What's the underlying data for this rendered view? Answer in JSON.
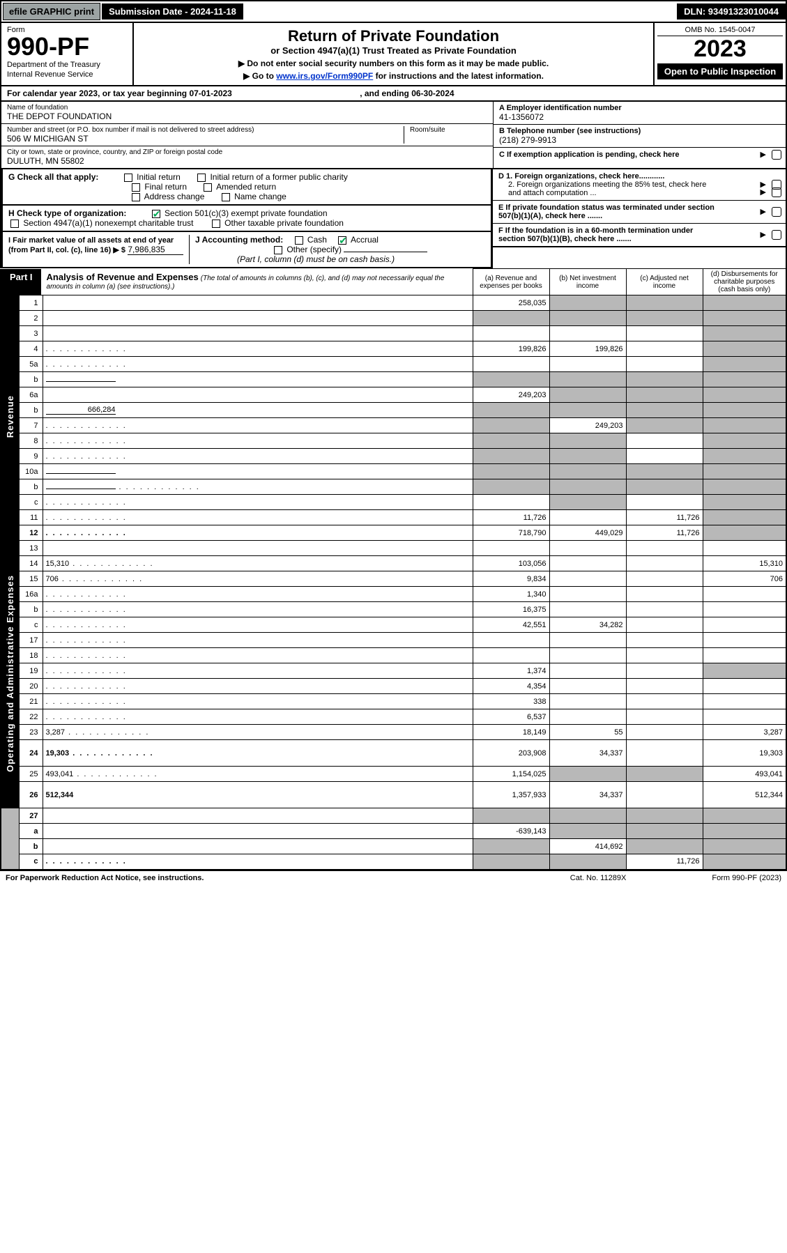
{
  "topbar": {
    "efile": "efile GRAPHIC print",
    "subdate_label": "Submission Date - 2024-11-18",
    "dln": "DLN: 93491323010044"
  },
  "header": {
    "form_word": "Form",
    "form_num": "990-PF",
    "dept": "Department of the Treasury",
    "irs": "Internal Revenue Service",
    "title": "Return of Private Foundation",
    "subtitle": "or Section 4947(a)(1) Trust Treated as Private Foundation",
    "note1": "▶ Do not enter social security numbers on this form as it may be made public.",
    "note2_pre": "▶ Go to ",
    "note2_link": "www.irs.gov/Form990PF",
    "note2_post": " for instructions and the latest information.",
    "omb": "OMB No. 1545-0047",
    "year": "2023",
    "open": "Open to Public Inspection"
  },
  "cal": {
    "text_pre": "For calendar year 2023, or tax year beginning ",
    "begin": "07-01-2023",
    "text_mid": " , and ending ",
    "end": "06-30-2024"
  },
  "info": {
    "name_lbl": "Name of foundation",
    "name": "THE DEPOT FOUNDATION",
    "addr_lbl": "Number and street (or P.O. box number if mail is not delivered to street address)",
    "addr": "506 W MICHIGAN ST",
    "room_lbl": "Room/suite",
    "city_lbl": "City or town, state or province, country, and ZIP or foreign postal code",
    "city": "DULUTH, MN  55802",
    "A_lbl": "A Employer identification number",
    "A_val": "41-1356072",
    "B_lbl": "B Telephone number (see instructions)",
    "B_val": "(218) 279-9913",
    "C_lbl": "C If exemption application is pending, check here",
    "D1": "D 1. Foreign organizations, check here............",
    "D2": "2. Foreign organizations meeting the 85% test, check here and attach computation ...",
    "E": "E  If private foundation status was terminated under section 507(b)(1)(A), check here .......",
    "F": "F  If the foundation is in a 60-month termination under section 507(b)(1)(B), check here .......",
    "G_lbl": "G Check all that apply:",
    "G_opts": [
      "Initial return",
      "Initial return of a former public charity",
      "Final return",
      "Amended return",
      "Address change",
      "Name change"
    ],
    "H_lbl": "H Check type of organization:",
    "H_opts": [
      "Section 501(c)(3) exempt private foundation",
      "Section 4947(a)(1) nonexempt charitable trust",
      "Other taxable private foundation"
    ],
    "I_lbl": "I Fair market value of all assets at end of year (from Part II, col. (c), line 16) ▶ $",
    "I_val": "7,986,835",
    "J_lbl": "J Accounting method:",
    "J_opts": [
      "Cash",
      "Accrual"
    ],
    "J_other": "Other (specify)",
    "J_note": "(Part I, column (d) must be on cash basis.)"
  },
  "part1": {
    "tab": "Part I",
    "title": "Analysis of Revenue and Expenses",
    "sub": "(The total of amounts in columns (b), (c), and (d) may not necessarily equal the amounts in column (a) (see instructions).)",
    "cols": {
      "a": "(a)  Revenue and expenses per books",
      "b": "(b)  Net investment income",
      "c": "(c)  Adjusted net income",
      "d": "(d)  Disbursements for charitable purposes (cash basis only)"
    }
  },
  "rows": [
    {
      "sec": "rev",
      "n": "1",
      "d": "",
      "a": "258,035",
      "b": "",
      "c": "",
      "gb": true,
      "gc": true,
      "gd": true
    },
    {
      "sec": "rev",
      "n": "2",
      "d": "",
      "a": "",
      "b": "",
      "c": "",
      "ga": true,
      "gb": true,
      "gc": true,
      "gd": true,
      "dotrow": true
    },
    {
      "sec": "rev",
      "n": "3",
      "d": "",
      "a": "",
      "b": "",
      "c": "",
      "gd": true
    },
    {
      "sec": "rev",
      "n": "4",
      "d": "",
      "a": "199,826",
      "b": "199,826",
      "c": "",
      "gd": true,
      "dots": true
    },
    {
      "sec": "rev",
      "n": "5a",
      "d": "",
      "a": "",
      "b": "",
      "c": "",
      "gd": true,
      "dots": true
    },
    {
      "sec": "rev",
      "n": "b",
      "d": "",
      "a": "",
      "b": "",
      "c": "",
      "ga": true,
      "gb": true,
      "gc": true,
      "gd": true,
      "inline": true
    },
    {
      "sec": "rev",
      "n": "6a",
      "d": "",
      "a": "249,203",
      "b": "",
      "c": "",
      "gb": true,
      "gc": true,
      "gd": true
    },
    {
      "sec": "rev",
      "n": "b",
      "d": "",
      "inline_val": "666,284",
      "a": "",
      "b": "",
      "c": "",
      "ga": true,
      "gb": true,
      "gc": true,
      "gd": true
    },
    {
      "sec": "rev",
      "n": "7",
      "d": "",
      "a": "",
      "b": "249,203",
      "c": "",
      "ga": true,
      "gc": true,
      "gd": true,
      "dots": true
    },
    {
      "sec": "rev",
      "n": "8",
      "d": "",
      "a": "",
      "b": "",
      "c": "",
      "ga": true,
      "gb": true,
      "gd": true,
      "dots": true
    },
    {
      "sec": "rev",
      "n": "9",
      "d": "",
      "a": "",
      "b": "",
      "c": "",
      "ga": true,
      "gb": true,
      "gd": true,
      "dots": true
    },
    {
      "sec": "rev",
      "n": "10a",
      "d": "",
      "a": "",
      "b": "",
      "c": "",
      "ga": true,
      "gb": true,
      "gc": true,
      "gd": true,
      "inline": true
    },
    {
      "sec": "rev",
      "n": "b",
      "d": "",
      "a": "",
      "b": "",
      "c": "",
      "ga": true,
      "gb": true,
      "gc": true,
      "gd": true,
      "inline": true,
      "dots": true
    },
    {
      "sec": "rev",
      "n": "c",
      "d": "",
      "a": "",
      "b": "",
      "c": "",
      "gb": true,
      "gd": true,
      "dots": true
    },
    {
      "sec": "rev",
      "n": "11",
      "d": "",
      "a": "11,726",
      "b": "",
      "c": "11,726",
      "gd": true,
      "dots": true
    },
    {
      "sec": "rev",
      "n": "12",
      "d": "",
      "a": "718,790",
      "b": "449,029",
      "c": "11,726",
      "gd": true,
      "bold": true,
      "dots": true
    },
    {
      "sec": "exp",
      "n": "13",
      "d": "",
      "a": "",
      "b": "",
      "c": ""
    },
    {
      "sec": "exp",
      "n": "14",
      "d": "15,310",
      "a": "103,056",
      "b": "",
      "c": "",
      "dots": true
    },
    {
      "sec": "exp",
      "n": "15",
      "d": "706",
      "a": "9,834",
      "b": "",
      "c": "",
      "dots": true
    },
    {
      "sec": "exp",
      "n": "16a",
      "d": "",
      "a": "1,340",
      "b": "",
      "c": "",
      "dots": true
    },
    {
      "sec": "exp",
      "n": "b",
      "d": "",
      "a": "16,375",
      "b": "",
      "c": "",
      "dots": true
    },
    {
      "sec": "exp",
      "n": "c",
      "d": "",
      "a": "42,551",
      "b": "34,282",
      "c": "",
      "dots": true
    },
    {
      "sec": "exp",
      "n": "17",
      "d": "",
      "a": "",
      "b": "",
      "c": "",
      "dots": true
    },
    {
      "sec": "exp",
      "n": "18",
      "d": "",
      "a": "",
      "b": "",
      "c": "",
      "dots": true
    },
    {
      "sec": "exp",
      "n": "19",
      "d": "",
      "a": "1,374",
      "b": "",
      "c": "",
      "gd": true,
      "dots": true
    },
    {
      "sec": "exp",
      "n": "20",
      "d": "",
      "a": "4,354",
      "b": "",
      "c": "",
      "dots": true
    },
    {
      "sec": "exp",
      "n": "21",
      "d": "",
      "a": "338",
      "b": "",
      "c": "",
      "dots": true
    },
    {
      "sec": "exp",
      "n": "22",
      "d": "",
      "a": "6,537",
      "b": "",
      "c": "",
      "dots": true
    },
    {
      "sec": "exp",
      "n": "23",
      "d": "3,287",
      "a": "18,149",
      "b": "55",
      "c": "",
      "dots": true
    },
    {
      "sec": "exp",
      "n": "24",
      "d": "19,303",
      "a": "203,908",
      "b": "34,337",
      "c": "",
      "bold": true,
      "dots": true,
      "tall": true
    },
    {
      "sec": "exp",
      "n": "25",
      "d": "493,041",
      "a": "1,154,025",
      "b": "",
      "c": "",
      "gb": true,
      "gc": true,
      "dots": true
    },
    {
      "sec": "exp",
      "n": "26",
      "d": "512,344",
      "a": "1,357,933",
      "b": "34,337",
      "c": "",
      "bold": true,
      "tall": true
    },
    {
      "sec": "net",
      "n": "27",
      "d": "",
      "a": "",
      "b": "",
      "c": "",
      "ga": true,
      "gb": true,
      "gc": true,
      "gd": true
    },
    {
      "sec": "net",
      "n": "a",
      "d": "",
      "a": "-639,143",
      "b": "",
      "c": "",
      "gb": true,
      "gc": true,
      "gd": true,
      "bold": true
    },
    {
      "sec": "net",
      "n": "b",
      "d": "",
      "a": "",
      "b": "414,692",
      "c": "",
      "ga": true,
      "gc": true,
      "gd": true,
      "bold": true
    },
    {
      "sec": "net",
      "n": "c",
      "d": "",
      "a": "",
      "b": "",
      "c": "11,726",
      "ga": true,
      "gb": true,
      "gd": true,
      "bold": true,
      "dots": true
    }
  ],
  "vlabels": {
    "rev": "Revenue",
    "exp": "Operating and Administrative Expenses"
  },
  "footer": {
    "left": "For Paperwork Reduction Act Notice, see instructions.",
    "mid": "Cat. No. 11289X",
    "right": "Form 990-PF (2023)"
  }
}
